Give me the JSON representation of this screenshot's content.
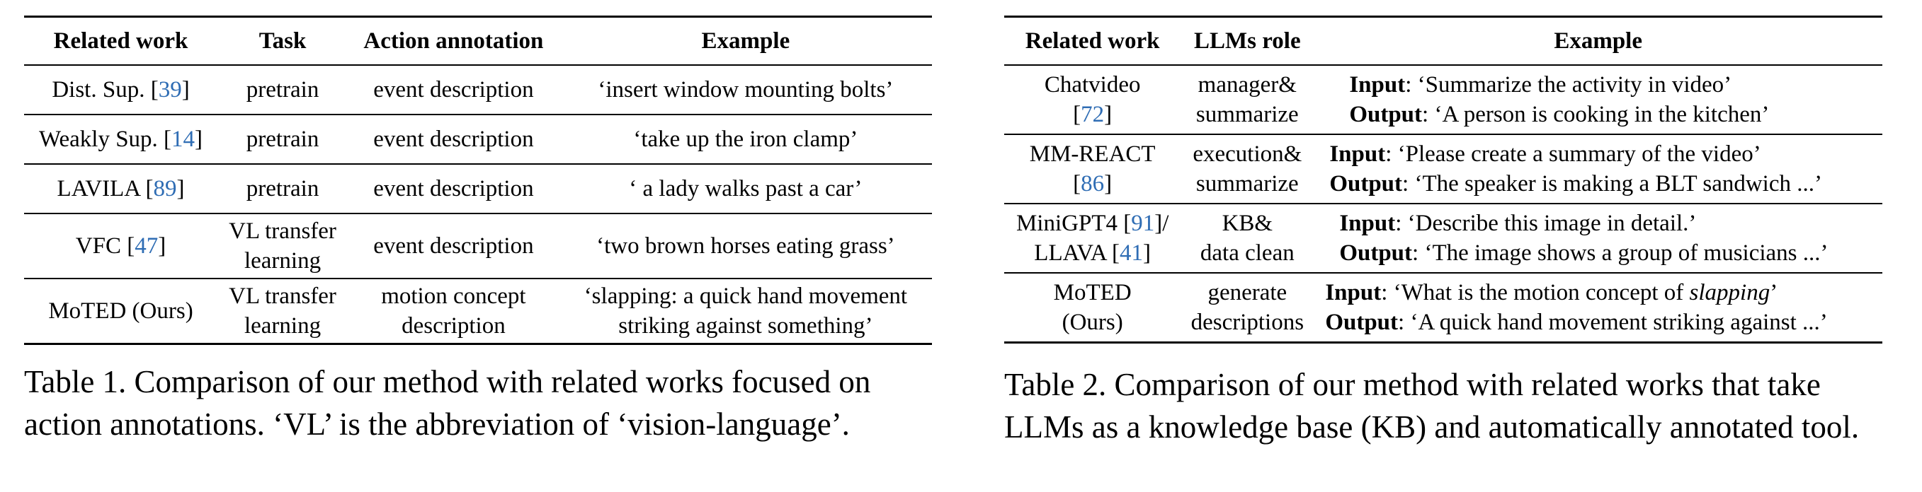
{
  "table1": {
    "headers": [
      "Related work",
      "Task",
      "Action annotation",
      "Example"
    ],
    "rows": [
      {
        "work": "Dist. Sup. [",
        "cite": "39",
        "task": [
          "pretrain"
        ],
        "annotation": [
          "event description"
        ],
        "example": [
          "‘insert window mounting bolts’"
        ]
      },
      {
        "work": "Weakly Sup. [",
        "cite": "14",
        "task": [
          "pretrain"
        ],
        "annotation": [
          "event description"
        ],
        "example": [
          "‘take up the iron clamp’"
        ]
      },
      {
        "work": "LAVILA [",
        "cite": "89",
        "task": [
          "pretrain"
        ],
        "annotation": [
          "event description"
        ],
        "example": [
          "‘ a lady walks past a car’"
        ]
      },
      {
        "work": "VFC [",
        "cite": "47",
        "task": [
          "VL transfer",
          "learning"
        ],
        "annotation": [
          "event description"
        ],
        "example": [
          "‘two brown horses eating grass’"
        ]
      },
      {
        "work": "MoTED (Ours)",
        "cite": "",
        "task": [
          "VL transfer",
          "learning"
        ],
        "annotation": [
          "motion concept",
          "description"
        ],
        "example": [
          "‘slapping: a quick hand movement",
          "striking against something’"
        ]
      }
    ],
    "caption": [
      "Table 1. Comparison of our method with related works focused on",
      "action annotations. ‘VL’ is the abbreviation of ‘vision-language’."
    ]
  },
  "table2": {
    "headers": [
      "Related work",
      "LLMs role",
      "Example"
    ],
    "labels": {
      "input": "Input",
      "output": "Output"
    },
    "rows": [
      {
        "work1": "Chatvideo",
        "work2_pre": "[",
        "cite2": "72",
        "work2_post": "]",
        "cite1": "",
        "role": [
          "manager&",
          "summarize"
        ],
        "input": "‘Summarize the activity in video’",
        "output": "‘A person is cooking in the kitchen’"
      },
      {
        "work1": "MM-REACT",
        "work2_pre": "[",
        "cite2": "86",
        "work2_post": "]",
        "cite1": "",
        "role": [
          "execution&",
          "summarize"
        ],
        "input": "‘Please create a summary of the video’",
        "output": "‘The speaker is making a BLT sandwich ...’"
      },
      {
        "work1": "MiniGPT4 [",
        "cite1": "91",
        "work1_post": "]/",
        "work2_pre": "LLAVA [",
        "cite2": "41",
        "work2_post": "]",
        "role": [
          "KB&",
          "data clean"
        ],
        "input": "‘Describe this image in detail.’",
        "output": "‘The image shows a group of musicians ...’"
      },
      {
        "work1": "MoTED",
        "cite1": "",
        "work2_pre": "(Ours)",
        "cite2": "",
        "work2_post": "",
        "role": [
          "generate",
          "descriptions"
        ],
        "input_pre": "‘What is the motion concept of ",
        "input_em": "slapping",
        "input_post": "’",
        "output": "‘A quick hand movement striking against ...’"
      }
    ],
    "caption": [
      "Table 2.  Comparison of our method with related works that take",
      "LLMs as a knowledge base (KB) and automatically annotated tool."
    ]
  }
}
